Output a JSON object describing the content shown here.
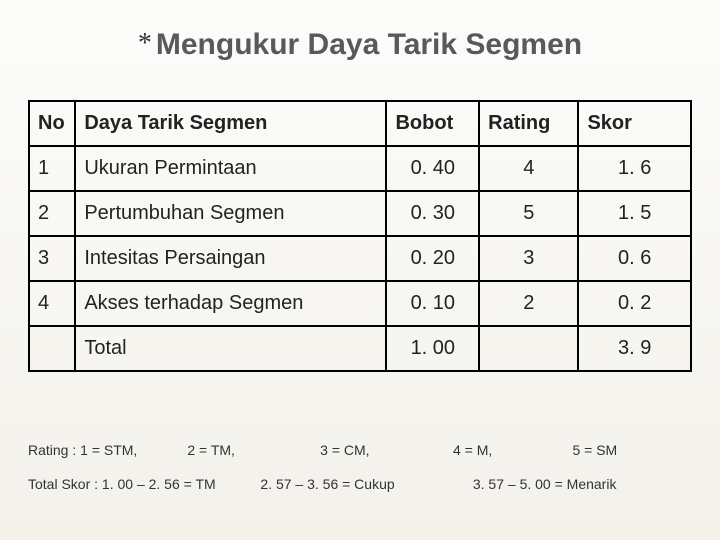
{
  "title": {
    "asterisk": "*",
    "text": "Mengukur Daya Tarik Segmen"
  },
  "table": {
    "headers": {
      "no": "No",
      "name": "Daya Tarik Segmen",
      "bobot": "Bobot",
      "rating": "Rating",
      "skor": "Skor"
    },
    "rows": [
      {
        "no": "1",
        "name": "Ukuran Permintaan",
        "bobot": "0. 40",
        "rating": "4",
        "skor": "1. 6"
      },
      {
        "no": "2",
        "name": "Pertumbuhan Segmen",
        "bobot": "0. 30",
        "rating": "5",
        "skor": "1. 5"
      },
      {
        "no": "3",
        "name": "Intesitas Persaingan",
        "bobot": "0. 20",
        "rating": "3",
        "skor": "0. 6"
      },
      {
        "no": "4",
        "name": "Akses terhadap Segmen",
        "bobot": "0. 10",
        "rating": "2",
        "skor": "0. 2"
      }
    ],
    "total": {
      "label": "Total",
      "bobot": "1. 00",
      "rating": "",
      "skor": "3. 9"
    }
  },
  "footnotes": {
    "rating_legend": [
      "Rating : 1 = STM,",
      "2 = TM,",
      "3 = CM,",
      "4 = M,",
      "5 = SM"
    ],
    "skor_legend": [
      "Total Skor : 1. 00 – 2. 56 = TM",
      "2. 57 – 3. 56 = Cukup",
      "3. 57 – 5. 00 = Menarik"
    ]
  }
}
